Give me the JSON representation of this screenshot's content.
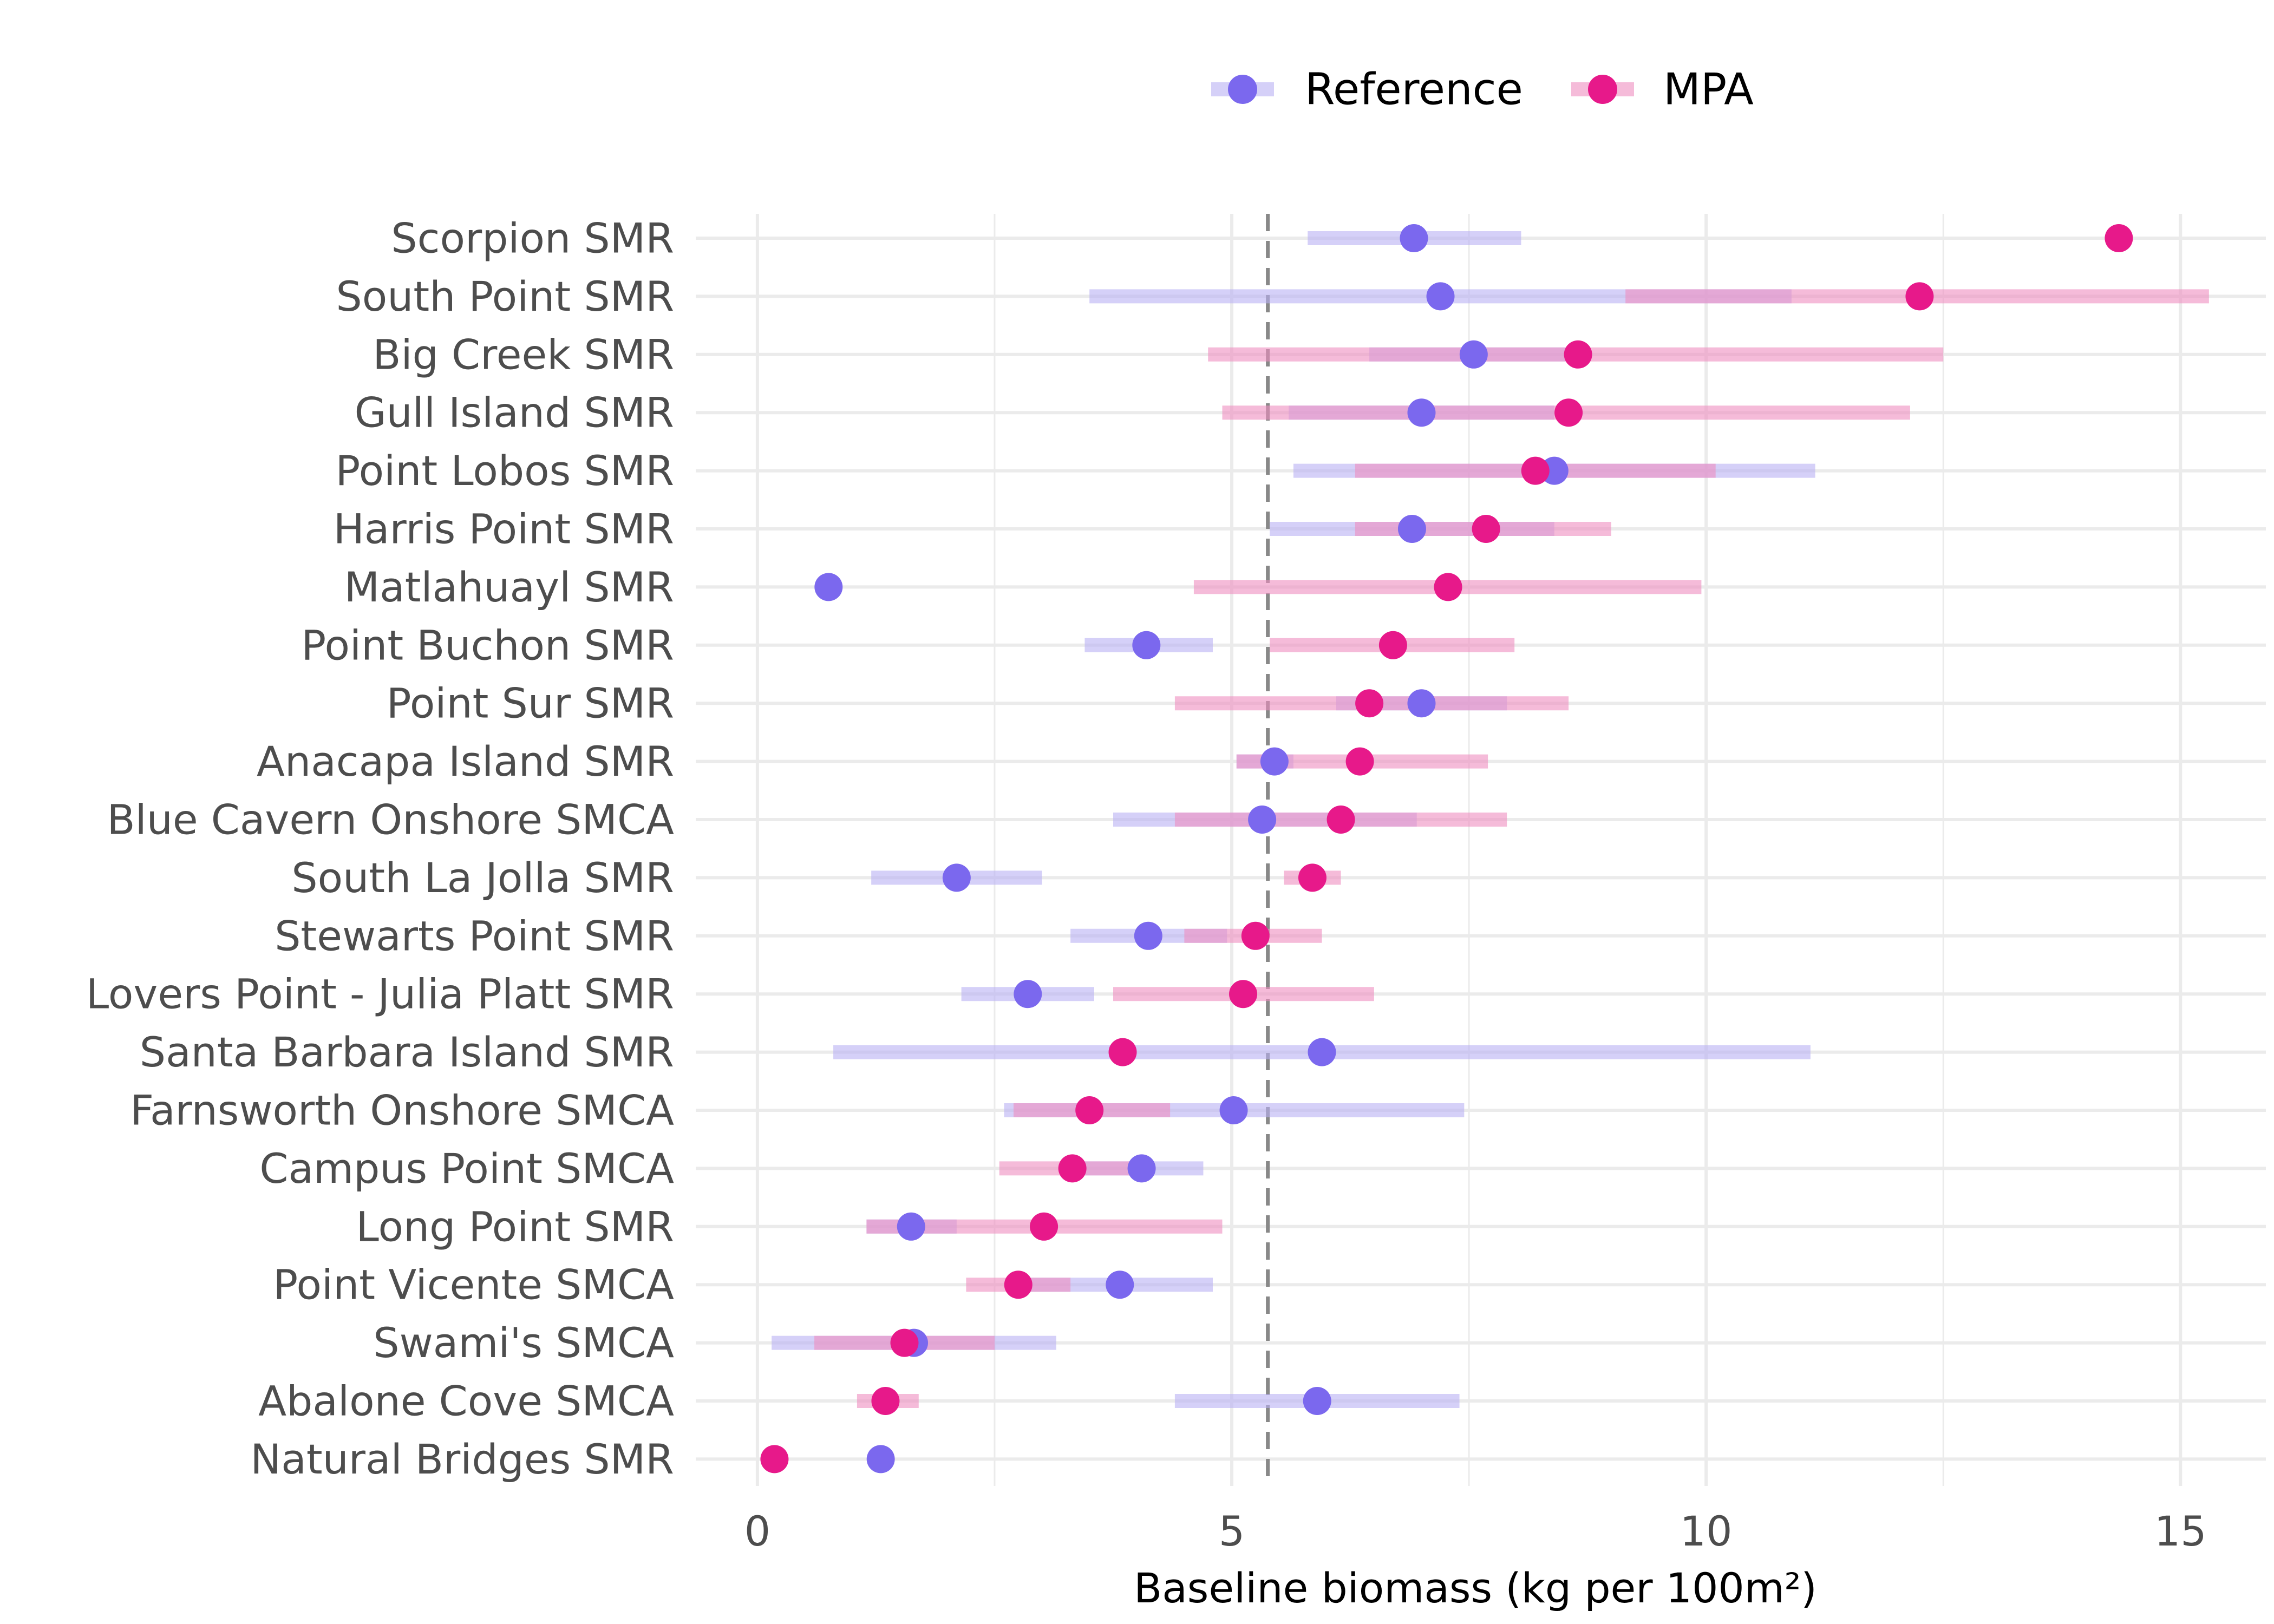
{
  "chart_data": {
    "type": "dot-range",
    "xlabel": "Baseline biomass (kg per 100m²)",
    "xlim": [
      -0.65,
      15.9
    ],
    "x_ticks": [
      0,
      5,
      10,
      15
    ],
    "x_tick_labels": [
      "0",
      "5",
      "10",
      "15"
    ],
    "reference_line_x": 5.38,
    "grid": true,
    "legend_position": "top",
    "series": [
      {
        "name": "Reference",
        "color": "#7b68ee",
        "range_color": "#b9b0f3"
      },
      {
        "name": "MPA",
        "color": "#e7198a",
        "range_color": "#ef8ebf"
      }
    ],
    "categories": [
      "Scorpion SMR",
      "South Point SMR",
      "Big Creek SMR",
      "Gull Island SMR",
      "Point Lobos SMR",
      "Harris Point SMR",
      "Matlahuayl SMR",
      "Point Buchon SMR",
      "Point Sur SMR",
      "Anacapa Island SMR",
      "Blue Cavern Onshore SMCA",
      "South La Jolla SMR",
      "Stewarts Point SMR",
      "Lovers Point - Julia Platt SMR",
      "Santa Barbara Island SMR",
      "Farnsworth Onshore SMCA",
      "Campus Point SMCA",
      "Long Point SMR",
      "Point Vicente SMCA",
      "Swami's SMCA",
      "Abalone Cove SMCA",
      "Natural Bridges SMR"
    ],
    "rows": [
      {
        "site": "Scorpion SMR",
        "ref": 6.92,
        "ref_lo": 5.8,
        "ref_hi": 8.05,
        "mpa": 14.35,
        "mpa_lo": null,
        "mpa_hi": null
      },
      {
        "site": "South Point SMR",
        "ref": 7.2,
        "ref_lo": 3.5,
        "ref_hi": 10.9,
        "mpa": 12.25,
        "mpa_lo": 9.15,
        "mpa_hi": 15.3
      },
      {
        "site": "Big Creek SMR",
        "ref": 7.55,
        "ref_lo": 6.45,
        "ref_hi": 8.65,
        "mpa": 8.65,
        "mpa_lo": 4.75,
        "mpa_hi": 12.5
      },
      {
        "site": "Gull Island SMR",
        "ref": 7.0,
        "ref_lo": 5.6,
        "ref_hi": 8.4,
        "mpa": 8.55,
        "mpa_lo": 4.9,
        "mpa_hi": 12.15
      },
      {
        "site": "Point Lobos SMR",
        "ref": 8.4,
        "ref_lo": 5.65,
        "ref_hi": 11.15,
        "mpa": 8.2,
        "mpa_lo": 6.3,
        "mpa_hi": 10.1
      },
      {
        "site": "Harris Point SMR",
        "ref": 6.9,
        "ref_lo": 5.4,
        "ref_hi": 8.4,
        "mpa": 7.68,
        "mpa_lo": 6.3,
        "mpa_hi": 9.0
      },
      {
        "site": "Matlahuayl SMR",
        "ref": 0.75,
        "ref_lo": null,
        "ref_hi": null,
        "mpa": 7.28,
        "mpa_lo": 4.6,
        "mpa_hi": 9.95
      },
      {
        "site": "Point Buchon SMR",
        "ref": 4.1,
        "ref_lo": 3.45,
        "ref_hi": 4.8,
        "mpa": 6.7,
        "mpa_lo": 5.4,
        "mpa_hi": 7.98
      },
      {
        "site": "Point Sur SMR",
        "ref": 7.0,
        "ref_lo": 6.1,
        "ref_hi": 7.9,
        "mpa": 6.45,
        "mpa_lo": 4.4,
        "mpa_hi": 8.55
      },
      {
        "site": "Anacapa Island SMR",
        "ref": 5.45,
        "ref_lo": 5.05,
        "ref_hi": 5.65,
        "mpa": 6.35,
        "mpa_lo": 5.05,
        "mpa_hi": 7.7
      },
      {
        "site": "Blue Cavern Onshore SMCA",
        "ref": 5.32,
        "ref_lo": 3.75,
        "ref_hi": 6.95,
        "mpa": 6.15,
        "mpa_lo": 4.4,
        "mpa_hi": 7.9
      },
      {
        "site": "South La Jolla SMR",
        "ref": 2.1,
        "ref_lo": 1.2,
        "ref_hi": 3.0,
        "mpa": 5.85,
        "mpa_lo": 5.55,
        "mpa_hi": 6.15
      },
      {
        "site": "Stewarts Point SMR",
        "ref": 4.12,
        "ref_lo": 3.3,
        "ref_hi": 4.95,
        "mpa": 5.25,
        "mpa_lo": 4.5,
        "mpa_hi": 5.95
      },
      {
        "site": "Lovers Point - Julia Platt SMR",
        "ref": 2.85,
        "ref_lo": 2.15,
        "ref_hi": 3.55,
        "mpa": 5.12,
        "mpa_lo": 3.75,
        "mpa_hi": 6.5
      },
      {
        "site": "Santa Barbara Island SMR",
        "ref": 5.95,
        "ref_lo": 0.8,
        "ref_hi": 11.1,
        "mpa": 3.85,
        "mpa_lo": null,
        "mpa_hi": null
      },
      {
        "site": "Farnsworth Onshore SMCA",
        "ref": 5.02,
        "ref_lo": 2.6,
        "ref_hi": 7.45,
        "mpa": 3.5,
        "mpa_lo": 2.7,
        "mpa_hi": 4.35
      },
      {
        "site": "Campus Point SMCA",
        "ref": 4.05,
        "ref_lo": 3.35,
        "ref_hi": 4.7,
        "mpa": 3.32,
        "mpa_lo": 2.55,
        "mpa_hi": 4.1
      },
      {
        "site": "Long Point SMR",
        "ref": 1.62,
        "ref_lo": 1.15,
        "ref_hi": 2.1,
        "mpa": 3.02,
        "mpa_lo": 1.15,
        "mpa_hi": 4.9
      },
      {
        "site": "Point Vicente SMCA",
        "ref": 3.82,
        "ref_lo": 2.85,
        "ref_hi": 4.8,
        "mpa": 2.75,
        "mpa_lo": 2.2,
        "mpa_hi": 3.3
      },
      {
        "site": "Swami's SMCA",
        "ref": 1.65,
        "ref_lo": 0.15,
        "ref_hi": 3.15,
        "mpa": 1.55,
        "mpa_lo": 0.6,
        "mpa_hi": 2.5
      },
      {
        "site": "Abalone Cove SMCA",
        "ref": 5.9,
        "ref_lo": 4.4,
        "ref_hi": 7.4,
        "mpa": 1.35,
        "mpa_lo": 1.05,
        "mpa_hi": 1.7
      },
      {
        "site": "Natural Bridges SMR",
        "ref": 1.3,
        "ref_lo": null,
        "ref_hi": null,
        "mpa": 0.18,
        "mpa_lo": null,
        "mpa_hi": null
      }
    ]
  }
}
